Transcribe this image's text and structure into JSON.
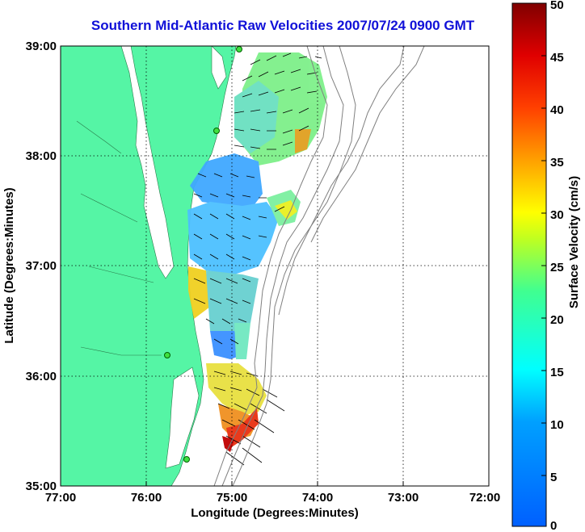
{
  "title": "Southern Mid-Atlantic Raw Velocities 2007/07/24 0900 GMT",
  "axes": {
    "xlabel": "Longitude (Degrees:Minutes)",
    "ylabel": "Latitude (Degrees:Minutes)",
    "x_ticks": [
      "77:00",
      "76:00",
      "75:00",
      "74:00",
      "73:00",
      "72:00"
    ],
    "y_ticks": [
      "39:00",
      "38:00",
      "37:00",
      "36:00",
      "35:00"
    ],
    "xlim": [
      -77,
      -72
    ],
    "ylim": [
      35,
      39
    ]
  },
  "colorbar": {
    "label": "Surface Velocity (cm/s)",
    "ticks": [
      "50",
      "45",
      "40",
      "35",
      "30",
      "25",
      "20",
      "15",
      "10",
      "5",
      "0"
    ],
    "range": [
      0,
      50
    ]
  },
  "colors": {
    "land": "#55f5a5",
    "ocean": "#ffffff",
    "title": "#1010d8",
    "grid": "#000000"
  }
}
